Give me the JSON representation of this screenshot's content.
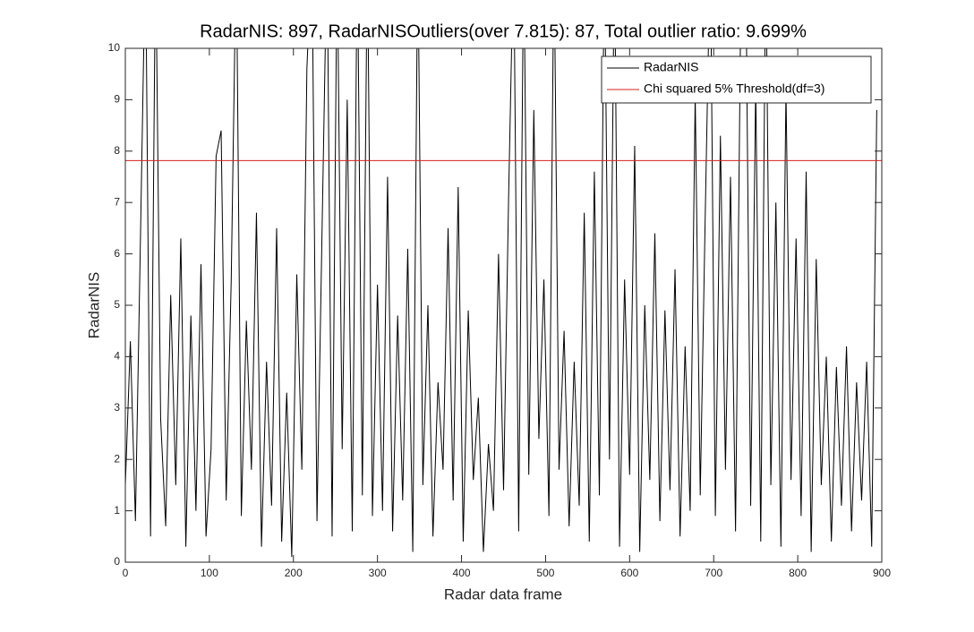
{
  "chart_data": {
    "type": "line",
    "title": "RadarNIS: 897, RadarNISOutliers(over 7.815): 87, Total outlier ratio: 9.699%",
    "xlabel": "Radar data frame",
    "ylabel": "RadarNIS",
    "xlim": [
      0,
      900
    ],
    "xticks": [
      0,
      100,
      200,
      300,
      400,
      500,
      600,
      700,
      800,
      900
    ],
    "ylim": [
      0,
      10
    ],
    "yticks": [
      0,
      1,
      2,
      3,
      4,
      5,
      6,
      7,
      8,
      9,
      10
    ],
    "legend": "upper right",
    "grid": false,
    "series": [
      {
        "name": "RadarNIS",
        "color": "#000000",
        "x": [
          0,
          6,
          12,
          18,
          24,
          30,
          36,
          42,
          48,
          54,
          60,
          66,
          72,
          78,
          84,
          90,
          96,
          102,
          108,
          114,
          120,
          126,
          132,
          138,
          144,
          150,
          156,
          162,
          168,
          174,
          180,
          186,
          192,
          198,
          204,
          210,
          216,
          222,
          228,
          234,
          240,
          246,
          252,
          258,
          264,
          270,
          276,
          282,
          288,
          294,
          300,
          306,
          312,
          318,
          324,
          330,
          336,
          342,
          348,
          354,
          360,
          366,
          372,
          378,
          384,
          390,
          396,
          402,
          408,
          414,
          420,
          426,
          432,
          438,
          444,
          450,
          456,
          462,
          468,
          474,
          480,
          486,
          492,
          498,
          504,
          510,
          516,
          522,
          528,
          534,
          540,
          546,
          552,
          558,
          564,
          570,
          576,
          582,
          588,
          594,
          600,
          606,
          612,
          618,
          624,
          630,
          636,
          642,
          648,
          654,
          660,
          666,
          672,
          678,
          684,
          690,
          696,
          702,
          708,
          714,
          720,
          726,
          732,
          738,
          744,
          750,
          756,
          762,
          768,
          774,
          780,
          786,
          792,
          798,
          804,
          810,
          816,
          822,
          828,
          834,
          840,
          846,
          852,
          858,
          864,
          870,
          876,
          882,
          888,
          894
        ],
        "values": [
          1.5,
          4.3,
          0.8,
          6.3,
          12,
          0.5,
          12,
          2.8,
          0.7,
          5.2,
          1.5,
          6.3,
          0.3,
          4.8,
          1.0,
          5.8,
          0.5,
          2.2,
          7.9,
          8.4,
          1.2,
          5.5,
          12,
          0.9,
          4.7,
          1.8,
          6.8,
          0.3,
          3.9,
          1.1,
          6.5,
          0.4,
          3.3,
          0.1,
          5.6,
          1.8,
          9.6,
          12,
          0.8,
          6.4,
          12,
          0.5,
          12,
          2.2,
          9.0,
          0.6,
          12,
          1.3,
          12,
          0.9,
          5.4,
          1.0,
          7.5,
          0.6,
          4.8,
          1.2,
          6.1,
          0.2,
          12,
          1.5,
          5.0,
          0.5,
          3.5,
          1.8,
          6.5,
          1.2,
          7.3,
          0.4,
          4.9,
          1.6,
          3.2,
          0.2,
          2.3,
          1.0,
          6.0,
          1.4,
          7.1,
          12,
          0.6,
          12,
          1.7,
          8.8,
          2.4,
          5.5,
          0.9,
          12,
          1.8,
          4.5,
          0.7,
          3.9,
          1.1,
          6.8,
          0.4,
          7.6,
          1.3,
          12,
          2.0,
          12,
          0.3,
          5.5,
          1.7,
          8.1,
          0.2,
          5.0,
          1.6,
          6.4,
          0.8,
          4.9,
          1.4,
          5.7,
          0.5,
          4.2,
          1.0,
          9.1,
          1.3,
          6.8,
          12,
          0.9,
          8.3,
          1.8,
          7.5,
          0.6,
          10.5,
          12,
          1.1,
          9.3,
          0.4,
          12,
          1.5,
          7.0,
          0.3,
          9.2,
          1.6,
          6.3,
          0.9,
          7.6,
          0.2,
          5.9,
          1.5,
          4.0,
          0.4,
          3.8,
          1.1,
          4.2,
          0.6,
          3.5,
          1.2,
          3.9,
          0.3,
          8.8
        ]
      },
      {
        "name": "Chi squared 5% Threshold(df=3)",
        "color": "#d62020",
        "x": [
          0,
          900
        ],
        "values": [
          7.815,
          7.815
        ]
      }
    ]
  }
}
